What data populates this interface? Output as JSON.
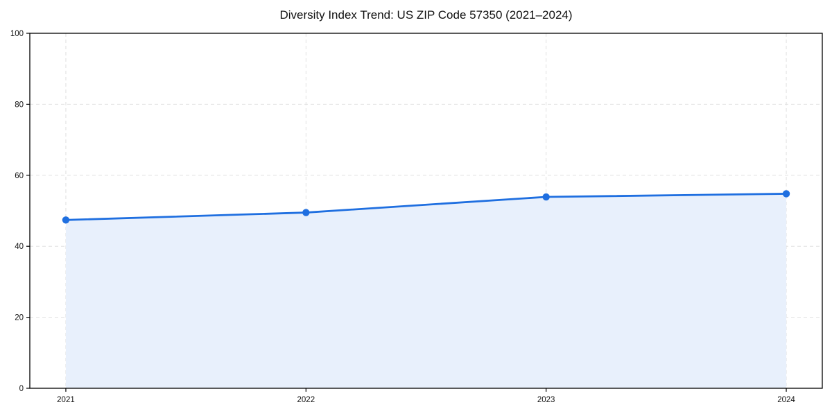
{
  "page": {
    "background": "#ffffff"
  },
  "chart_data": {
    "type": "area",
    "title": "Diversity Index Trend: US ZIP Code 57350 (2021–2024)",
    "x": [
      2021,
      2022,
      2023,
      2024
    ],
    "values": [
      47.4,
      49.5,
      53.9,
      54.8
    ],
    "xtick_labels": [
      "2021",
      "2022",
      "2023",
      "2024"
    ],
    "yticks": [
      0,
      20,
      40,
      60,
      80,
      100
    ],
    "ytick_labels": [
      "0",
      "20",
      "40",
      "60",
      "80",
      "100"
    ],
    "xlim": [
      2020.85,
      2024.15
    ],
    "ylim": [
      0,
      100
    ],
    "grid": true,
    "grid_style": "dashed",
    "legend": "none",
    "colors": {
      "line": "#1f6fe0",
      "marker": "#1f6fe0",
      "fill": "#e8f0fc",
      "grid": "#e0e0e0",
      "spine": "#000000",
      "tick": "#000000",
      "label": "#111111",
      "title": "#111111"
    }
  }
}
